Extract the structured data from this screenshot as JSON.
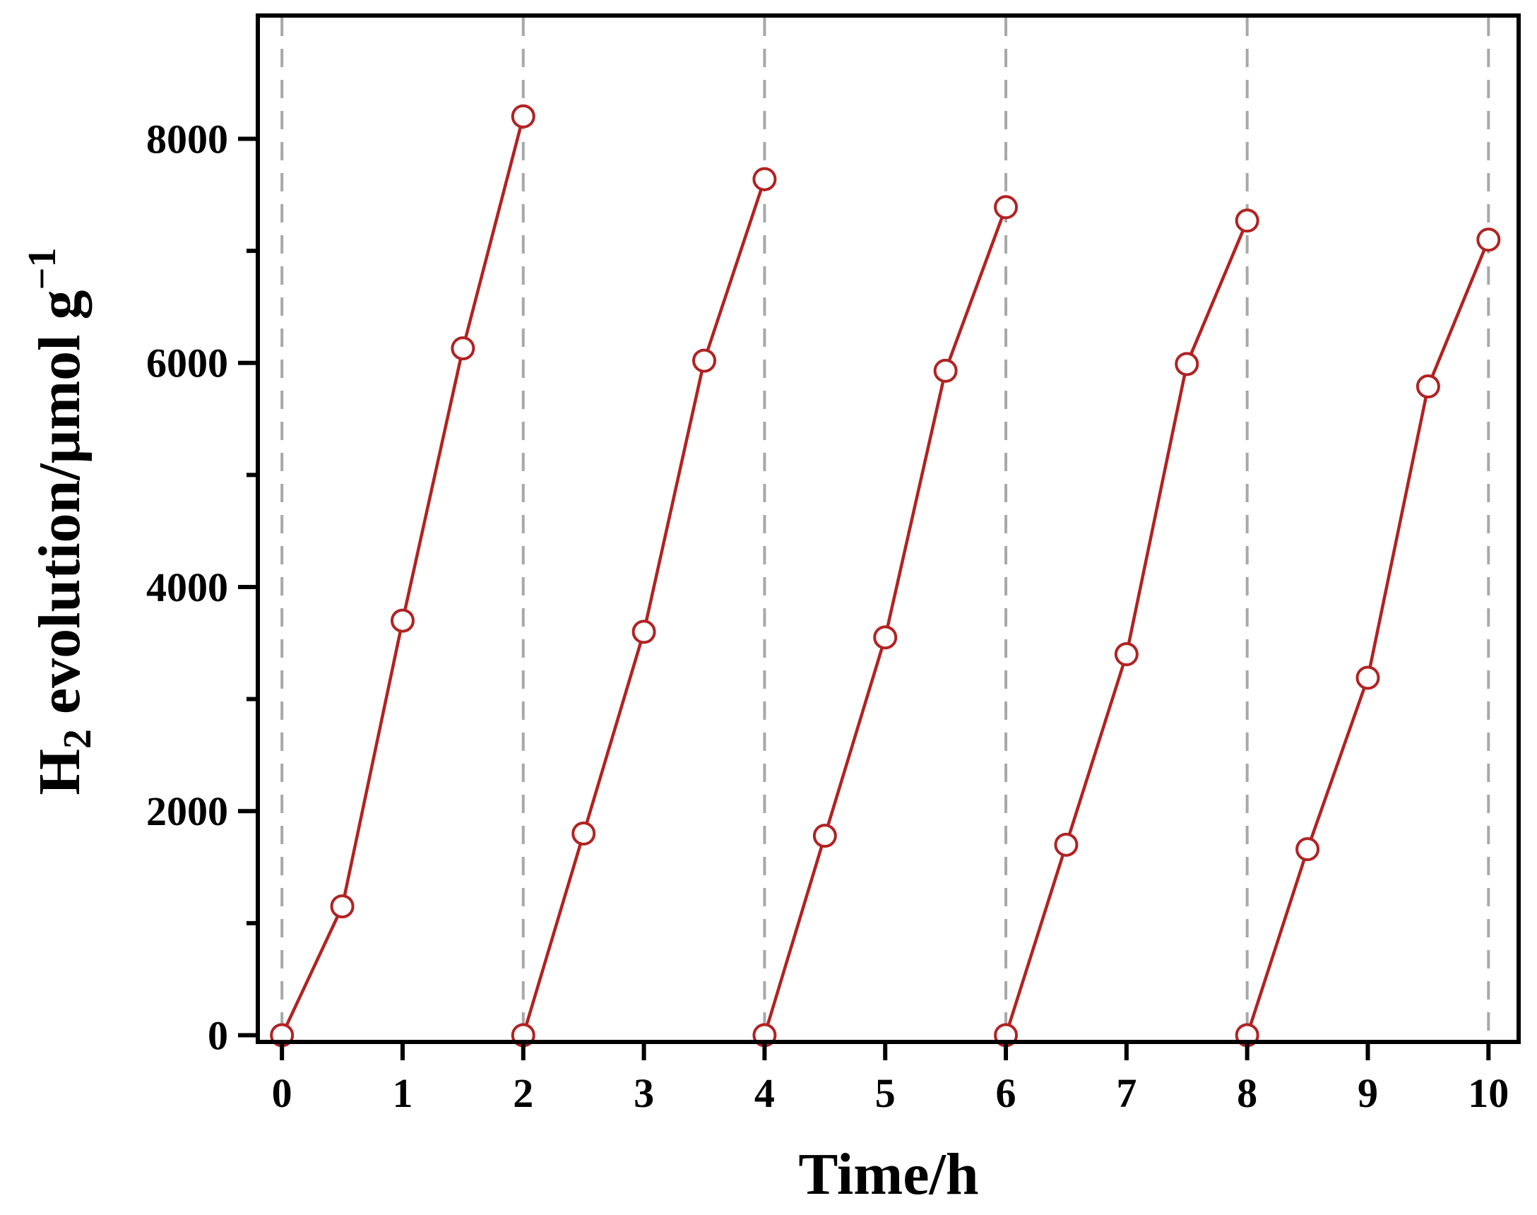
{
  "chart_data": {
    "type": "line",
    "xlabel": "Time/h",
    "ylabel": {
      "prefix": "H",
      "subscript": "2",
      "main": " evolution/μmol g",
      "superscript": "−1"
    },
    "xlim": [
      -0.2,
      10.25
    ],
    "ylim": [
      -60,
      9100
    ],
    "x_ticks": [
      0,
      1,
      2,
      3,
      4,
      5,
      6,
      7,
      8,
      9,
      10
    ],
    "y_ticks": [
      0,
      2000,
      4000,
      6000,
      8000
    ],
    "y_minor_ticks": [
      1000,
      3000,
      5000,
      7000
    ],
    "cycle_lines": [
      0,
      2,
      4,
      6,
      8,
      10
    ],
    "colors": {
      "line": "#b22222",
      "marker_fill": "#ffffff",
      "cycle_line": "#a8a8a8",
      "axis": "#000000"
    },
    "grid": false,
    "series": [
      {
        "x": [
          0,
          0.5,
          1,
          1.5,
          2
        ],
        "y": [
          0,
          1150,
          3700,
          6130,
          8200
        ]
      },
      {
        "x": [
          2,
          2.5,
          3,
          3.5,
          4
        ],
        "y": [
          0,
          1800,
          3600,
          6020,
          7640
        ]
      },
      {
        "x": [
          4,
          4.5,
          5,
          5.5,
          6
        ],
        "y": [
          0,
          1780,
          3550,
          5930,
          7390
        ]
      },
      {
        "x": [
          6,
          6.5,
          7,
          7.5,
          8
        ],
        "y": [
          0,
          1700,
          3400,
          5990,
          7270
        ]
      },
      {
        "x": [
          8,
          8.5,
          9,
          9.5,
          10
        ],
        "y": [
          0,
          1660,
          3190,
          5790,
          7100
        ]
      }
    ]
  }
}
